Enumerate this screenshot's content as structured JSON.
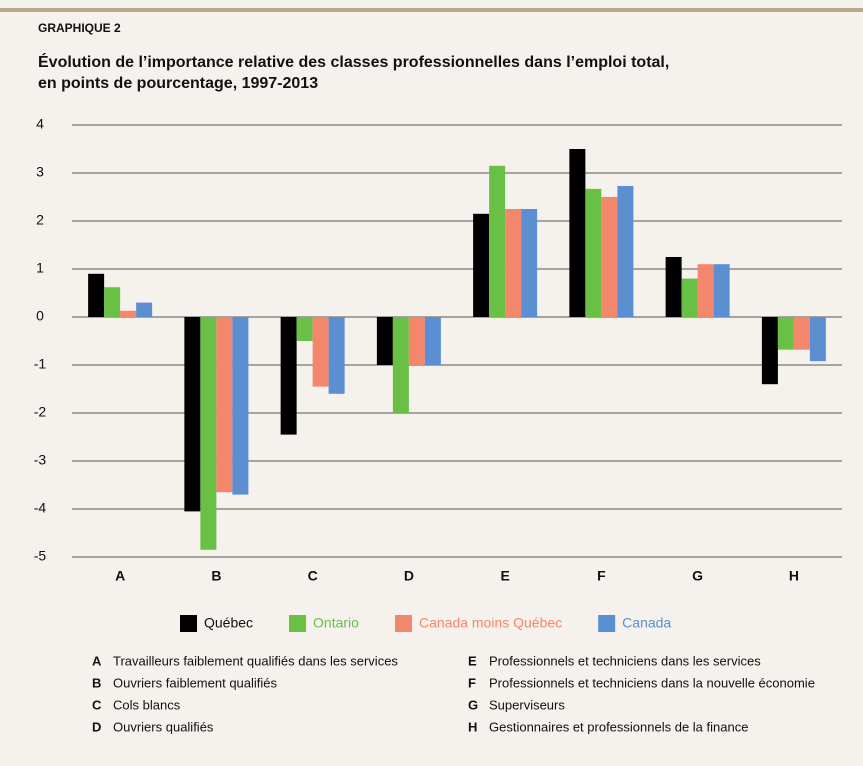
{
  "chart_data": {
    "type": "bar",
    "label": "GRAPHIQUE 2",
    "title": [
      "Évolution de l’importance relative des classes professionnelles dans l’emploi total,",
      "en points de pourcentage, 1997-2013"
    ],
    "categories": [
      "A",
      "B",
      "C",
      "D",
      "E",
      "F",
      "G",
      "H"
    ],
    "series": [
      {
        "name": "Québec",
        "color": "#000000",
        "values": [
          0.9,
          -4.05,
          -2.45,
          -1.0,
          2.15,
          3.5,
          1.25,
          -1.4
        ]
      },
      {
        "name": "Ontario",
        "color": "#6abf45",
        "values": [
          0.62,
          -4.85,
          -0.5,
          -2.0,
          3.15,
          2.67,
          0.8,
          -0.68
        ]
      },
      {
        "name": "Canada moins Québec",
        "color": "#f4866b",
        "values": [
          0.13,
          -3.65,
          -1.45,
          -1.0,
          2.25,
          2.5,
          1.1,
          -0.68
        ]
      },
      {
        "name": "Canada",
        "color": "#5b8fd1",
        "values": [
          0.3,
          -3.7,
          -1.6,
          -1.0,
          2.25,
          2.73,
          1.1,
          -0.92
        ]
      }
    ],
    "ylim": [
      -5,
      4
    ],
    "yticks": [
      4,
      3,
      2,
      1,
      0,
      -1,
      -2,
      -3,
      -4,
      -5
    ],
    "grid": true,
    "notes": [
      {
        "letter": "A",
        "text": "Travailleurs faiblement qualifiés dans les services"
      },
      {
        "letter": "B",
        "text": "Ouvriers faiblement qualifiés"
      },
      {
        "letter": "C",
        "text": "Cols blancs"
      },
      {
        "letter": "D",
        "text": "Ouvriers qualifiés"
      },
      {
        "letter": "E",
        "text": "Professionnels et techniciens dans les services"
      },
      {
        "letter": "F",
        "text": "Professionnels et techniciens dans la nouvelle économie"
      },
      {
        "letter": "G",
        "text": "Superviseurs"
      },
      {
        "letter": "H",
        "text": "Gestionnaires et professionnels de la finance"
      }
    ]
  }
}
